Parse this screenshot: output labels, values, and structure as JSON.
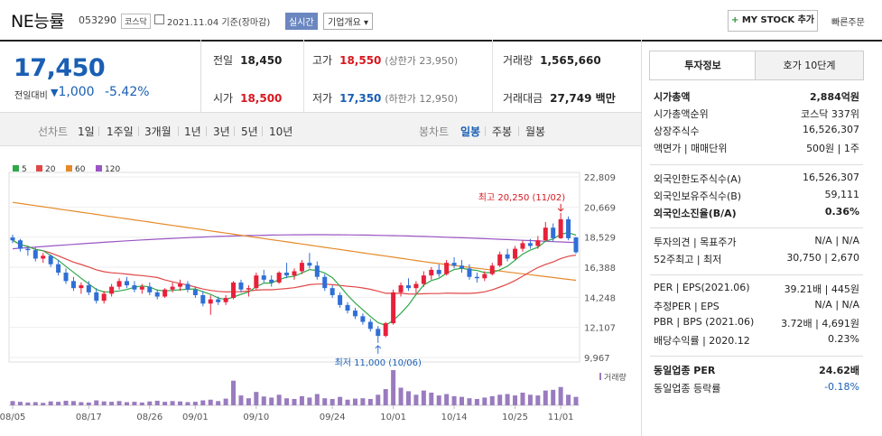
{
  "header": {
    "name": "NE능률",
    "code": "053290",
    "market": "코스닥",
    "date_text": "2021.11.04 기준(장마감)",
    "realtime_label": "실시간",
    "company_label": "기업개요",
    "mystock_label": "MY STOCK 추가",
    "quick_order_label": "빠른주문"
  },
  "price": {
    "current": "17,450",
    "change_label": "전일대비",
    "change_value": "1,000",
    "change_pct": "-5.42%"
  },
  "quote": {
    "prev_close_label": "전일",
    "prev_close": "18,450",
    "high_label": "고가",
    "high": "18,550",
    "upper_limit": "(상한가 23,950)",
    "volume_label": "거래량",
    "volume": "1,565,660",
    "open_label": "시가",
    "open": "18,500",
    "low_label": "저가",
    "low": "17,350",
    "lower_limit": "(하한가 12,950)",
    "amount_label": "거래대금",
    "amount": "27,749 백만"
  },
  "period": {
    "line_label": "선차트",
    "line_items": [
      "1일",
      "1주일",
      "3개월",
      "1년",
      "3년",
      "5년",
      "10년"
    ],
    "candle_label": "봉차트",
    "candle_items": [
      "일봉",
      "주봉",
      "월봉"
    ],
    "selected_candle": "일봉"
  },
  "chart_data": {
    "type": "candlestick",
    "legend": [
      {
        "name": "5",
        "color": "#2fa84a"
      },
      {
        "name": "20",
        "color": "#e04848"
      },
      {
        "name": "60",
        "color": "#e58a2a"
      },
      {
        "name": "120",
        "color": "#9a55c4"
      }
    ],
    "y_ticks": [
      "22,809",
      "20,669",
      "18,529",
      "16,388",
      "14,248",
      "12,107",
      "9,967"
    ],
    "ylim": [
      9967,
      22809
    ],
    "x_ticks": [
      "08/05",
      "08/17",
      "08/26",
      "09/01",
      "09/10",
      "09/24",
      "10/01",
      "10/14",
      "10/25",
      "11/01"
    ],
    "high_annotation": "최고 20,250 (11/02)",
    "low_annotation": "최저 11,000 (10/06)",
    "volume_label": "거래량",
    "candles": [
      [
        18500,
        18700,
        18100,
        18300
      ],
      [
        18300,
        18400,
        17500,
        17700
      ],
      [
        17700,
        17900,
        17200,
        17600
      ],
      [
        17600,
        17800,
        16800,
        17000
      ],
      [
        17000,
        17400,
        16700,
        17200
      ],
      [
        17200,
        17300,
        16400,
        16600
      ],
      [
        16600,
        16900,
        15800,
        16000
      ],
      [
        16000,
        16300,
        15200,
        15400
      ],
      [
        15400,
        15700,
        14700,
        14900
      ],
      [
        14900,
        15300,
        14500,
        15100
      ],
      [
        15100,
        15400,
        14400,
        14600
      ],
      [
        14600,
        14900,
        13800,
        14000
      ],
      [
        14000,
        14700,
        13800,
        14500
      ],
      [
        14500,
        15200,
        14300,
        15000
      ],
      [
        15000,
        15600,
        14800,
        15400
      ],
      [
        15400,
        15700,
        14900,
        15100
      ],
      [
        15100,
        15400,
        14600,
        14800
      ],
      [
        14800,
        15200,
        14500,
        15000
      ],
      [
        15000,
        15300,
        14400,
        14600
      ],
      [
        14600,
        14800,
        14100,
        14300
      ],
      [
        14300,
        14900,
        14200,
        14800
      ],
      [
        14800,
        15300,
        14600,
        15000
      ],
      [
        15000,
        15500,
        14700,
        15200
      ],
      [
        15200,
        15400,
        14600,
        14800
      ],
      [
        14800,
        15000,
        14200,
        14400
      ],
      [
        14400,
        14700,
        13600,
        13800
      ],
      [
        13800,
        14400,
        13000,
        14100
      ],
      [
        14100,
        14300,
        13700,
        13900
      ],
      [
        13900,
        14400,
        13700,
        14200
      ],
      [
        14200,
        15400,
        14100,
        15300
      ],
      [
        15300,
        15500,
        14600,
        14800
      ],
      [
        14800,
        15100,
        14300,
        14900
      ],
      [
        14900,
        16000,
        14800,
        15800
      ],
      [
        15800,
        16200,
        15300,
        15500
      ],
      [
        15500,
        15800,
        15000,
        15300
      ],
      [
        15300,
        16100,
        15200,
        16000
      ],
      [
        16000,
        16700,
        15600,
        15800
      ],
      [
        15800,
        16300,
        15500,
        16100
      ],
      [
        16100,
        16900,
        15900,
        16700
      ],
      [
        16700,
        17400,
        16300,
        16500
      ],
      [
        16500,
        16800,
        15500,
        15700
      ],
      [
        15700,
        15900,
        14700,
        14900
      ],
      [
        14900,
        15100,
        14200,
        14400
      ],
      [
        14400,
        14600,
        13500,
        13700
      ],
      [
        13700,
        13900,
        13100,
        13300
      ],
      [
        13300,
        13500,
        12700,
        12900
      ],
      [
        12900,
        13100,
        12300,
        12500
      ],
      [
        12500,
        12700,
        11800,
        12000
      ],
      [
        12000,
        12200,
        11000,
        11500
      ],
      [
        11500,
        12500,
        11400,
        12400
      ],
      [
        12400,
        14800,
        12300,
        14600
      ],
      [
        14600,
        15300,
        14300,
        15100
      ],
      [
        15100,
        15600,
        14700,
        14900
      ],
      [
        14900,
        15400,
        14500,
        15200
      ],
      [
        15200,
        16100,
        15000,
        15800
      ],
      [
        15800,
        16400,
        15500,
        16200
      ],
      [
        16200,
        16600,
        15700,
        15900
      ],
      [
        15900,
        16900,
        15800,
        16700
      ],
      [
        16700,
        17100,
        16300,
        16500
      ],
      [
        16500,
        16900,
        16000,
        16300
      ],
      [
        16300,
        16600,
        15500,
        15700
      ],
      [
        15700,
        16000,
        15300,
        15600
      ],
      [
        15600,
        16100,
        15400,
        15900
      ],
      [
        15900,
        16700,
        15800,
        16500
      ],
      [
        16500,
        17500,
        16400,
        17300
      ],
      [
        17300,
        17700,
        16800,
        17000
      ],
      [
        17000,
        17900,
        16900,
        17700
      ],
      [
        17700,
        18300,
        17500,
        18100
      ],
      [
        18100,
        18400,
        17700,
        17900
      ],
      [
        17900,
        18600,
        17700,
        18300
      ],
      [
        18300,
        19600,
        18200,
        19200
      ],
      [
        19200,
        19500,
        18200,
        18450
      ],
      [
        18450,
        20250,
        18400,
        19800
      ],
      [
        19800,
        20000,
        18300,
        18450
      ],
      [
        18500,
        18550,
        17350,
        17450
      ]
    ],
    "volumes": [
      0.12,
      0.1,
      0.08,
      0.09,
      0.07,
      0.11,
      0.1,
      0.13,
      0.12,
      0.09,
      0.08,
      0.14,
      0.11,
      0.1,
      0.12,
      0.09,
      0.1,
      0.08,
      0.11,
      0.13,
      0.1,
      0.12,
      0.11,
      0.09,
      0.1,
      0.14,
      0.16,
      0.12,
      0.19,
      0.7,
      0.28,
      0.2,
      0.38,
      0.25,
      0.22,
      0.3,
      0.2,
      0.18,
      0.26,
      0.22,
      0.32,
      0.2,
      0.18,
      0.24,
      0.16,
      0.19,
      0.2,
      0.18,
      0.3,
      0.46,
      1.0,
      0.5,
      0.4,
      0.3,
      0.42,
      0.36,
      0.28,
      0.32,
      0.26,
      0.24,
      0.2,
      0.18,
      0.22,
      0.26,
      0.3,
      0.32,
      0.28,
      0.36,
      0.3,
      0.28,
      0.42,
      0.44,
      0.52,
      0.3,
      0.24
    ]
  },
  "tabs": {
    "invest": "투자정보",
    "hoga": "호가 10단계"
  },
  "info": [
    {
      "label": "시가총액",
      "value": "2,884억원",
      "bold": true
    },
    {
      "label": "시가총액순위",
      "value": "코스닥 337위"
    },
    {
      "label": "상장주식수",
      "value": "16,526,307"
    },
    {
      "label": "액면가 | 매매단위",
      "value": "500원 | 1주"
    },
    {
      "label": "외국인한도주식수(A)",
      "value": "16,526,307"
    },
    {
      "label": "외국인보유주식수(B)",
      "value": "59,111"
    },
    {
      "label": "외국인소진율(B/A)",
      "value": "0.36%",
      "bold": true
    },
    {
      "label": "투자의견 | 목표주가",
      "value": "N/A | N/A"
    },
    {
      "label": "52주최고 | 최저",
      "value": "30,750 | 2,670"
    },
    {
      "label": "PER | EPS(2021.06)",
      "value": "39.21배 | 445원"
    },
    {
      "label": "추정PER | EPS",
      "value": "N/A | N/A"
    },
    {
      "label": "PBR | BPS (2021.06)",
      "value": "3.72배 | 4,691원"
    },
    {
      "label": "배당수익률 | 2020.12",
      "value": "0.23%"
    },
    {
      "label": "동일업종 PER",
      "value": "24.62배",
      "bold": true
    },
    {
      "label": "동일업종 등락률",
      "value": "-0.18%",
      "blue": true
    }
  ]
}
